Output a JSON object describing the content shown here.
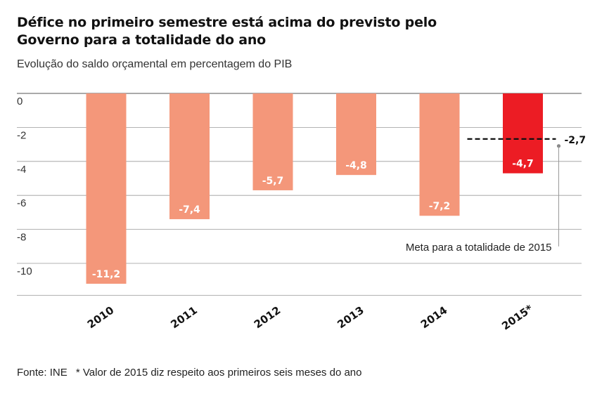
{
  "header": {
    "title": "Défice no primeiro semestre está acima do previsto pelo Governo para a totalidade do ano",
    "subtitle": "Evolução do saldo orçamental em percentagem do PIB"
  },
  "footer": {
    "source": "Fonte: INE",
    "note": "* Valor de 2015 diz respeito aos primeiros seis meses do ano"
  },
  "chart_data": {
    "type": "bar",
    "title": "Défice no primeiro semestre está acima do previsto pelo Governo para a totalidade do ano",
    "subtitle": "Evolução do saldo orçamental em percentagem do PIB",
    "categories": [
      "2010",
      "2011",
      "2012",
      "2013",
      "2014",
      "2015*"
    ],
    "values": [
      -11.2,
      -7.4,
      -5.7,
      -4.8,
      -7.2,
      -4.7
    ],
    "value_labels": [
      "-11,2",
      "-7,4",
      "-5,7",
      "-4,8",
      "-7,2",
      "-4,7"
    ],
    "bar_colors": [
      "#f4977a",
      "#f4977a",
      "#f4977a",
      "#f4977a",
      "#f4977a",
      "#ec1c24"
    ],
    "ylim": [
      -12,
      0
    ],
    "yticks": [
      0,
      -2,
      -4,
      -6,
      -8,
      -10
    ],
    "ytick_labels": [
      "0",
      "-2",
      "-4",
      "-6",
      "-8",
      "-10"
    ],
    "grid": true,
    "reference_line": {
      "value": -2.7,
      "label": "-2,7",
      "category": "2015*",
      "annotation": "Meta para a totalidade de 2015",
      "style": "dashed"
    }
  }
}
